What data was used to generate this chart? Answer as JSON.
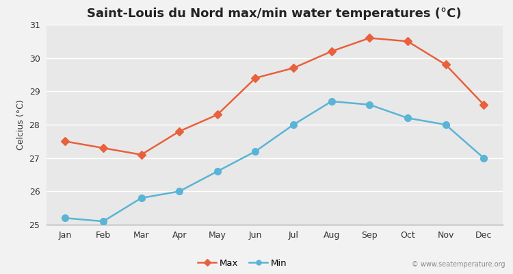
{
  "title": "Saint-Louis du Nord max/min water temperatures (°C)",
  "ylabel": "Celcius (°C)",
  "months": [
    "Jan",
    "Feb",
    "Mar",
    "Apr",
    "May",
    "Jun",
    "Jul",
    "Aug",
    "Sep",
    "Oct",
    "Nov",
    "Dec"
  ],
  "max_values": [
    27.5,
    27.3,
    27.1,
    27.8,
    28.3,
    29.4,
    29.7,
    30.2,
    30.6,
    30.5,
    29.8,
    28.6
  ],
  "min_values": [
    25.2,
    25.1,
    25.8,
    26.0,
    26.6,
    27.2,
    28.0,
    28.7,
    28.6,
    28.2,
    28.0,
    27.0
  ],
  "max_color": "#e8603c",
  "min_color": "#5ab4d6",
  "fig_bg_color": "#f2f2f2",
  "plot_bg_color": "#e8e8e8",
  "ylim": [
    25.0,
    31.0
  ],
  "yticks": [
    25,
    26,
    27,
    28,
    29,
    30,
    31
  ],
  "grid_color": "#ffffff",
  "watermark": "© www.seatemperature.org",
  "title_fontsize": 13,
  "label_fontsize": 9,
  "tick_fontsize": 9
}
